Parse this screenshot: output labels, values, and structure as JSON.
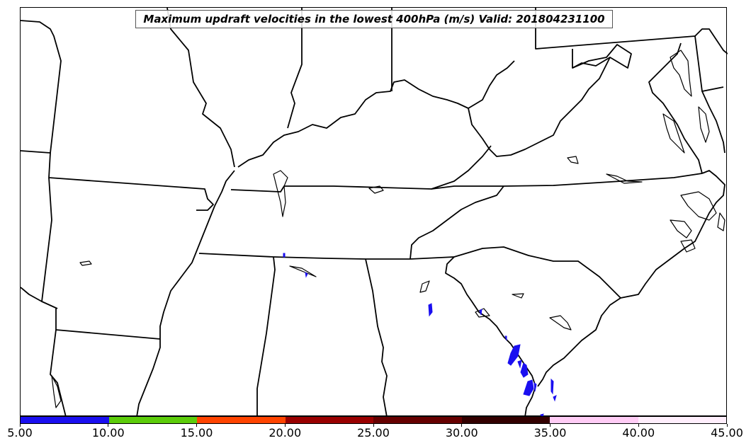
{
  "title": "Maximum updraft velocities in the lowest 400hPa (m/s) Valid: 201804231100",
  "colorbar": {
    "labels": [
      "5.00",
      "10.00",
      "15.00",
      "20.00",
      "25.00",
      "30.00",
      "35.00",
      "40.00",
      "45.00"
    ],
    "colors": [
      "#1a0ff0",
      "#5ccc0a",
      "#ff4400",
      "#990000",
      "#660000",
      "#330000",
      "#ffccf5",
      "#ffeefc"
    ]
  },
  "updraft_color": "#1a0ff0",
  "boundary_color": "#000000"
}
